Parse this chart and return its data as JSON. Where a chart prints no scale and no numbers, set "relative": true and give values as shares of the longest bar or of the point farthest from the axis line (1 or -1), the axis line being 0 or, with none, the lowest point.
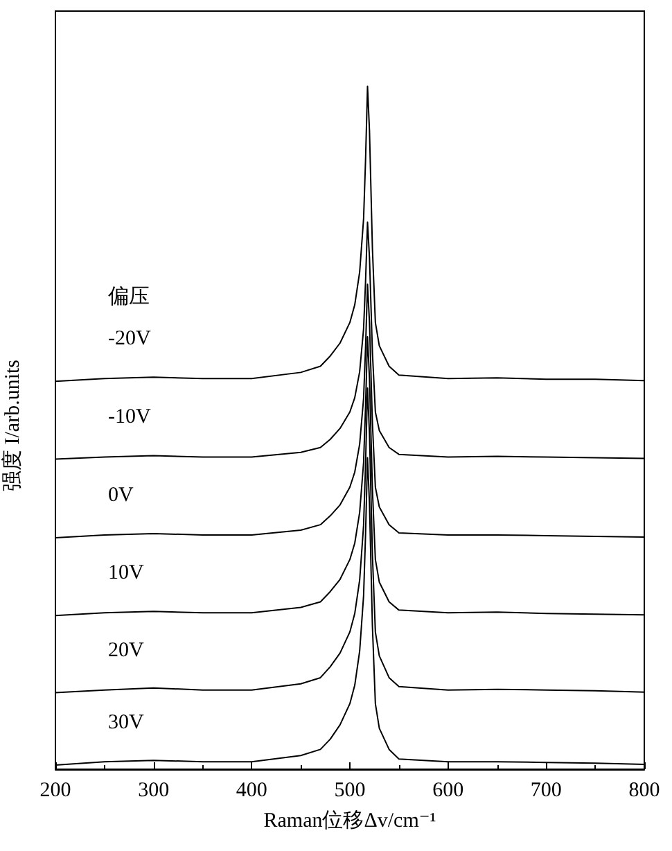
{
  "chart_data": {
    "type": "line",
    "relative": true,
    "xlabel": "Raman位移Δv/cm⁻¹",
    "ylabel": "强度 I/arb.units",
    "legend_title": "偏压",
    "x": [
      200,
      250,
      300,
      350,
      400,
      450,
      470,
      480,
      490,
      500,
      505,
      510,
      514,
      516,
      518,
      520,
      523,
      526,
      530,
      540,
      550,
      600,
      650,
      700,
      750,
      800
    ],
    "xlim": [
      200,
      800
    ],
    "xticks": [
      200,
      300,
      400,
      500,
      600,
      700,
      800
    ],
    "grid": false,
    "legend": false,
    "marker": "none",
    "line_style": "solid",
    "series": [
      {
        "name": "-20V",
        "color": "#000000",
        "values": [
          0.568,
          0.572,
          0.574,
          0.572,
          0.572,
          0.581,
          0.59,
          0.605,
          0.624,
          0.654,
          0.68,
          0.728,
          0.806,
          0.892,
          1.0,
          0.935,
          0.762,
          0.654,
          0.62,
          0.59,
          0.577,
          0.572,
          0.573,
          0.571,
          0.571,
          0.569
        ]
      },
      {
        "name": "-10V",
        "color": "#000000",
        "values": [
          0.454,
          0.457,
          0.459,
          0.457,
          0.457,
          0.464,
          0.471,
          0.483,
          0.499,
          0.523,
          0.544,
          0.582,
          0.645,
          0.714,
          0.801,
          0.749,
          0.61,
          0.523,
          0.496,
          0.471,
          0.461,
          0.457,
          0.458,
          0.457,
          0.456,
          0.455
        ]
      },
      {
        "name": "0V",
        "color": "#000000",
        "values": [
          0.339,
          0.343,
          0.345,
          0.343,
          0.343,
          0.35,
          0.358,
          0.371,
          0.387,
          0.413,
          0.435,
          0.476,
          0.543,
          0.617,
          0.71,
          0.654,
          0.506,
          0.413,
          0.384,
          0.358,
          0.346,
          0.343,
          0.343,
          0.342,
          0.341,
          0.34
        ]
      },
      {
        "name": "10V",
        "color": "#000000",
        "values": [
          0.225,
          0.229,
          0.231,
          0.229,
          0.229,
          0.237,
          0.245,
          0.26,
          0.278,
          0.307,
          0.331,
          0.376,
          0.449,
          0.531,
          0.633,
          0.572,
          0.409,
          0.307,
          0.274,
          0.245,
          0.233,
          0.229,
          0.23,
          0.228,
          0.227,
          0.226
        ]
      },
      {
        "name": "20V",
        "color": "#000000",
        "values": [
          0.112,
          0.116,
          0.119,
          0.116,
          0.116,
          0.125,
          0.134,
          0.15,
          0.17,
          0.201,
          0.228,
          0.277,
          0.357,
          0.447,
          0.558,
          0.491,
          0.313,
          0.201,
          0.166,
          0.134,
          0.121,
          0.116,
          0.117,
          0.116,
          0.115,
          0.113
        ]
      },
      {
        "name": "30V",
        "color": "#000000",
        "values": [
          0.006,
          0.011,
          0.013,
          0.011,
          0.011,
          0.02,
          0.029,
          0.044,
          0.065,
          0.096,
          0.123,
          0.173,
          0.254,
          0.344,
          0.456,
          0.389,
          0.209,
          0.096,
          0.06,
          0.029,
          0.015,
          0.011,
          0.011,
          0.01,
          0.009,
          0.007
        ]
      }
    ]
  }
}
